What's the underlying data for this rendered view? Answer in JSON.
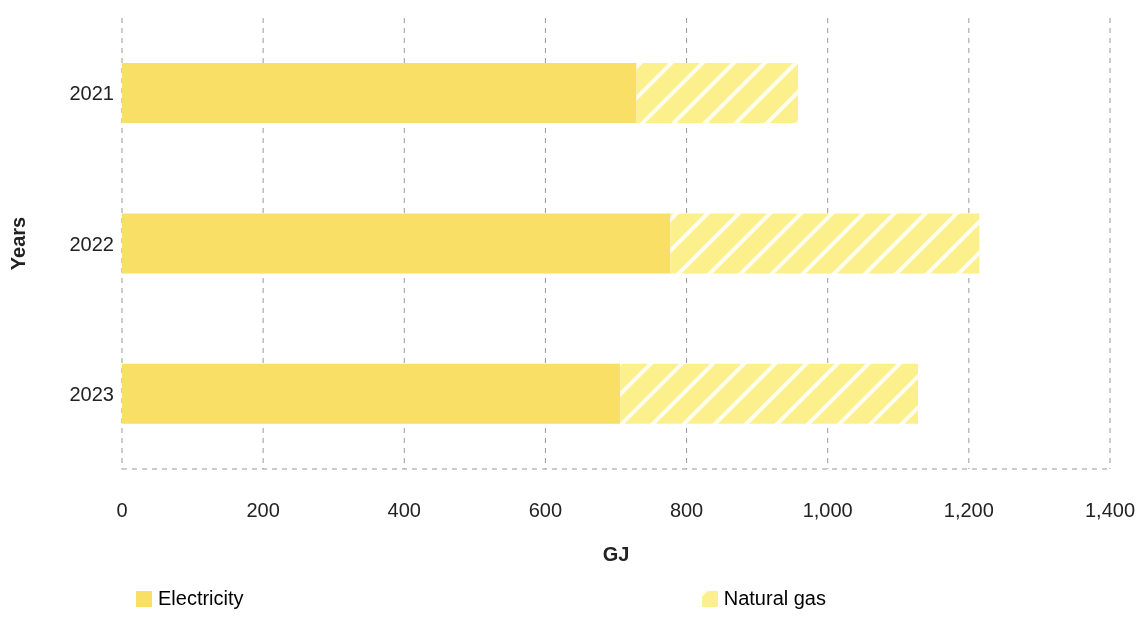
{
  "chart_data": {
    "type": "bar",
    "orientation": "horizontal",
    "stacked": true,
    "xlabel": "GJ",
    "ylabel": "Years",
    "categories": [
      "2021",
      "2022",
      "2023"
    ],
    "series": [
      {
        "name": "Electricity",
        "color": "#f9df66",
        "values": [
          729,
          777,
          706
        ]
      },
      {
        "name": "Natural gas",
        "color": "#fcf08c",
        "values": [
          229,
          438,
          422
        ]
      }
    ],
    "xlim": [
      0,
      1400
    ],
    "xticks": [
      0,
      {
        "value": 200,
        "label": "200"
      },
      {
        "value": 400,
        "label": "400"
      },
      {
        "value": 600,
        "label": "600"
      },
      {
        "value": 800,
        "label": "800"
      },
      {
        "value": 1000,
        "label": "1,000"
      },
      {
        "value": 1200,
        "label": "1,200"
      },
      {
        "value": 1400,
        "label": "1,400"
      }
    ],
    "grid": "x",
    "legend": "bottom"
  }
}
